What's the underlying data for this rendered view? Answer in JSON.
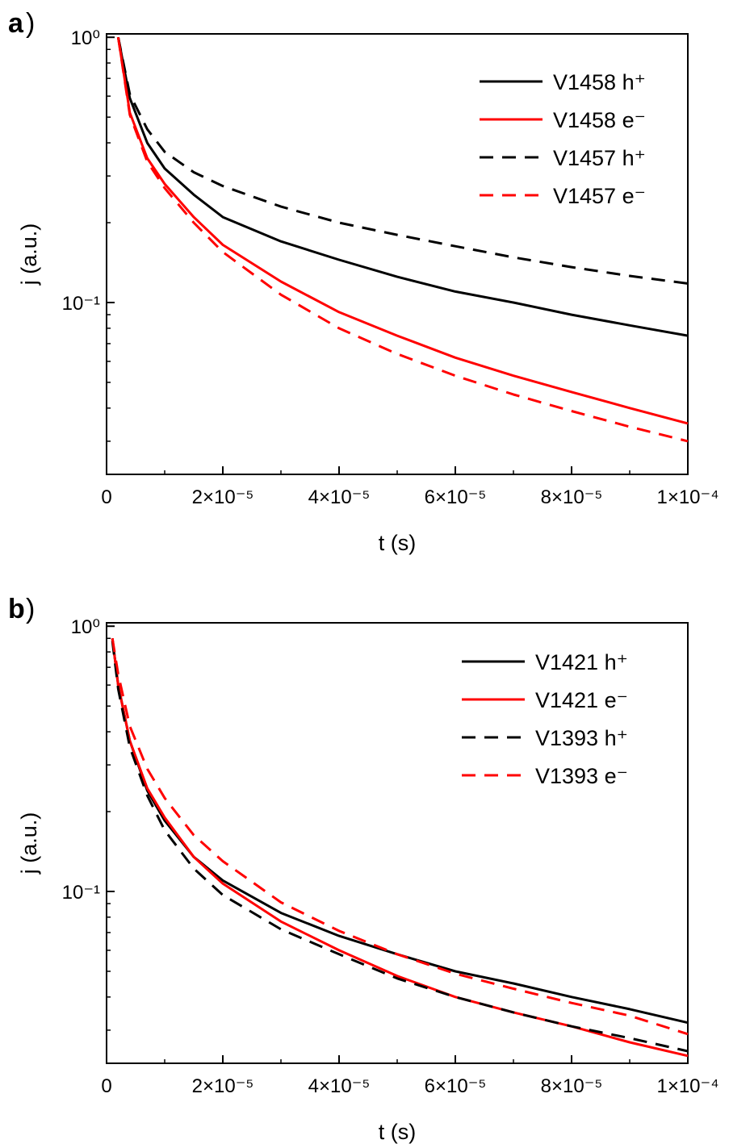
{
  "chart_data": [
    {
      "panel_label": "a",
      "type": "line",
      "xlabel": "t (s)",
      "ylabel": "j (a.u.)",
      "xlim": [
        0,
        0.0001
      ],
      "ylim": [
        0.0225,
        1.03
      ],
      "yscale": "log",
      "x_ticks": [
        0,
        2e-05,
        4e-05,
        6e-05,
        8e-05,
        0.0001
      ],
      "x_tick_labels": [
        "0",
        "2×10⁻⁵",
        "4×10⁻⁵",
        "6×10⁻⁵",
        "8×10⁻⁵",
        "1×10⁻⁴"
      ],
      "y_ticks": [
        1,
        0.1
      ],
      "y_tick_labels": [
        "10⁰",
        "10⁻¹"
      ],
      "legend_position": "top-right",
      "grid": false,
      "series": [
        {
          "name": "V1458 h⁺",
          "color": "#000000",
          "dash": "solid",
          "x": [
            2e-06,
            4e-06,
            7e-06,
            1e-05,
            1.5e-05,
            2e-05,
            3e-05,
            4e-05,
            5e-05,
            6e-05,
            7e-05,
            8e-05,
            9e-05,
            0.0001
          ],
          "y": [
            1.0,
            0.59,
            0.4,
            0.32,
            0.255,
            0.21,
            0.17,
            0.145,
            0.125,
            0.11,
            0.1,
            0.09,
            0.082,
            0.075
          ]
        },
        {
          "name": "V1458 e⁻",
          "color": "#ff0000",
          "dash": "solid",
          "x": [
            2e-06,
            4e-06,
            7e-06,
            1e-05,
            1.5e-05,
            2e-05,
            3e-05,
            4e-05,
            5e-05,
            6e-05,
            7e-05,
            8e-05,
            9e-05,
            0.0001
          ],
          "y": [
            1.0,
            0.52,
            0.35,
            0.28,
            0.21,
            0.165,
            0.12,
            0.092,
            0.075,
            0.062,
            0.053,
            0.046,
            0.04,
            0.035
          ]
        },
        {
          "name": "V1457 h⁺",
          "color": "#000000",
          "dash": "dashed",
          "x": [
            2e-06,
            4e-06,
            7e-06,
            1e-05,
            1.5e-05,
            2e-05,
            3e-05,
            4e-05,
            5e-05,
            6e-05,
            7e-05,
            8e-05,
            9e-05,
            0.0001
          ],
          "y": [
            1.0,
            0.61,
            0.45,
            0.37,
            0.31,
            0.275,
            0.23,
            0.2,
            0.18,
            0.163,
            0.148,
            0.136,
            0.126,
            0.118
          ]
        },
        {
          "name": "V1457 e⁻",
          "color": "#ff0000",
          "dash": "dashed",
          "x": [
            2e-06,
            4e-06,
            7e-06,
            1e-05,
            1.5e-05,
            2e-05,
            3e-05,
            4e-05,
            5e-05,
            6e-05,
            7e-05,
            8e-05,
            9e-05,
            0.0001
          ],
          "y": [
            1.0,
            0.51,
            0.34,
            0.27,
            0.2,
            0.155,
            0.107,
            0.08,
            0.064,
            0.053,
            0.045,
            0.039,
            0.034,
            0.03
          ]
        }
      ]
    },
    {
      "panel_label": "b",
      "type": "line",
      "xlabel": "t (s)",
      "ylabel": "j (a.u.)",
      "xlim": [
        0,
        0.0001
      ],
      "ylim": [
        0.0225,
        1.03
      ],
      "yscale": "log",
      "x_ticks": [
        0,
        2e-05,
        4e-05,
        6e-05,
        8e-05,
        0.0001
      ],
      "x_tick_labels": [
        "0",
        "2×10⁻⁵",
        "4×10⁻⁵",
        "6×10⁻⁵",
        "8×10⁻⁵",
        "1×10⁻⁴"
      ],
      "y_ticks": [
        1,
        0.1
      ],
      "y_tick_labels": [
        "10⁰",
        "10⁻¹"
      ],
      "legend_position": "top-right",
      "grid": false,
      "series": [
        {
          "name": "V1421 h⁺",
          "color": "#000000",
          "dash": "solid",
          "x": [
            1e-06,
            2e-06,
            4e-06,
            7e-06,
            1e-05,
            1.5e-05,
            2e-05,
            3e-05,
            4e-05,
            5e-05,
            6e-05,
            7e-05,
            8e-05,
            9e-05,
            0.0001
          ],
          "y": [
            0.9,
            0.6,
            0.37,
            0.24,
            0.185,
            0.135,
            0.11,
            0.083,
            0.068,
            0.058,
            0.05,
            0.045,
            0.04,
            0.036,
            0.032
          ]
        },
        {
          "name": "V1421 e⁻",
          "color": "#ff0000",
          "dash": "solid",
          "x": [
            1e-06,
            2e-06,
            4e-06,
            7e-06,
            1e-05,
            1.5e-05,
            2e-05,
            3e-05,
            4e-05,
            5e-05,
            6e-05,
            7e-05,
            8e-05,
            9e-05,
            0.0001
          ],
          "y": [
            0.9,
            0.6,
            0.37,
            0.245,
            0.19,
            0.135,
            0.107,
            0.077,
            0.06,
            0.048,
            0.04,
            0.035,
            0.031,
            0.027,
            0.024
          ]
        },
        {
          "name": "V1393 h⁺",
          "color": "#000000",
          "dash": "dashed",
          "x": [
            1e-06,
            2e-06,
            4e-06,
            7e-06,
            1e-05,
            1.5e-05,
            2e-05,
            3e-05,
            4e-05,
            5e-05,
            6e-05,
            7e-05,
            8e-05,
            9e-05,
            0.0001
          ],
          "y": [
            0.88,
            0.58,
            0.35,
            0.23,
            0.17,
            0.122,
            0.097,
            0.072,
            0.058,
            0.047,
            0.04,
            0.035,
            0.031,
            0.028,
            0.025
          ]
        },
        {
          "name": "V1393 e⁻",
          "color": "#ff0000",
          "dash": "dashed",
          "x": [
            1e-06,
            2e-06,
            4e-06,
            7e-06,
            1e-05,
            1.5e-05,
            2e-05,
            3e-05,
            4e-05,
            5e-05,
            6e-05,
            7e-05,
            8e-05,
            9e-05,
            0.0001
          ],
          "y": [
            0.9,
            0.66,
            0.42,
            0.29,
            0.225,
            0.163,
            0.13,
            0.091,
            0.071,
            0.058,
            0.049,
            0.043,
            0.038,
            0.034,
            0.029
          ]
        }
      ]
    }
  ]
}
